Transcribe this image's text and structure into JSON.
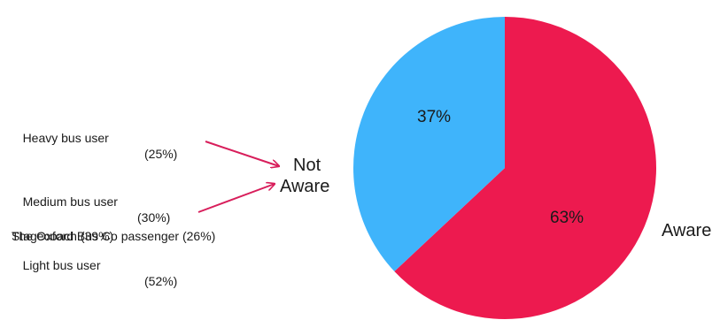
{
  "chart_data": {
    "type": "pie",
    "slices": [
      {
        "label": "Aware",
        "value": 63,
        "value_label": "63%",
        "color": "#ED1A4F"
      },
      {
        "label": "Not Aware",
        "value": 37,
        "value_label": "37%",
        "color": "#3FB4FB"
      }
    ],
    "labels": {
      "not_aware_line1": "Not",
      "not_aware_line2": "Aware",
      "aware": "Aware"
    },
    "annotations": {
      "group1": [
        {
          "label": "Heavy bus user",
          "value": "(25%)"
        },
        {
          "label": "Medium bus user",
          "value": "(30%)"
        },
        {
          "label": "Light bus user",
          "value": "(52%)"
        }
      ],
      "group2": [
        {
          "text": "The Oxford Bus Co passenger (26%)"
        },
        {
          "text": "Stagecoach (39%)"
        }
      ]
    },
    "arrow_color": "#D81E5B"
  }
}
